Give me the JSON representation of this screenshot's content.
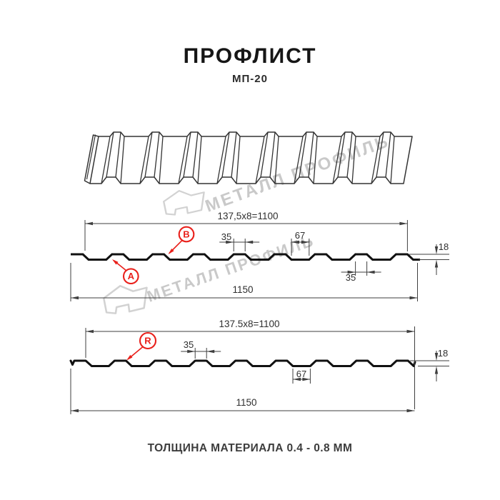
{
  "header": {
    "title": "ПРОФЛИСТ",
    "subtitle": "МП-20"
  },
  "watermark": {
    "brand": "МЕТАЛЛ ПРОФИЛЬ"
  },
  "section1": {
    "dim_width_top": "137,5x8=1100",
    "dim_width_bottom": "1150",
    "dim_rib_top": "35",
    "dim_valley": "67",
    "dim_height": "18",
    "dim_rib_bottom": "35",
    "marker_a": "A",
    "marker_b": "B"
  },
  "section2": {
    "dim_width_top": "137.5x8=1100",
    "dim_width_bottom": "1150",
    "dim_rib_top": "35",
    "dim_valley": "67",
    "dim_height": "18",
    "marker_r": "R"
  },
  "footer": {
    "note": "ТОЛЩИНА МАТЕРИАЛА 0.4 - 0.8 ММ"
  },
  "colors": {
    "accent_red": "#e9201b",
    "line_color": "#3f3f3f",
    "profile_color": "#111111",
    "watermark_color": "#c9c9c9",
    "background": "#ffffff"
  }
}
